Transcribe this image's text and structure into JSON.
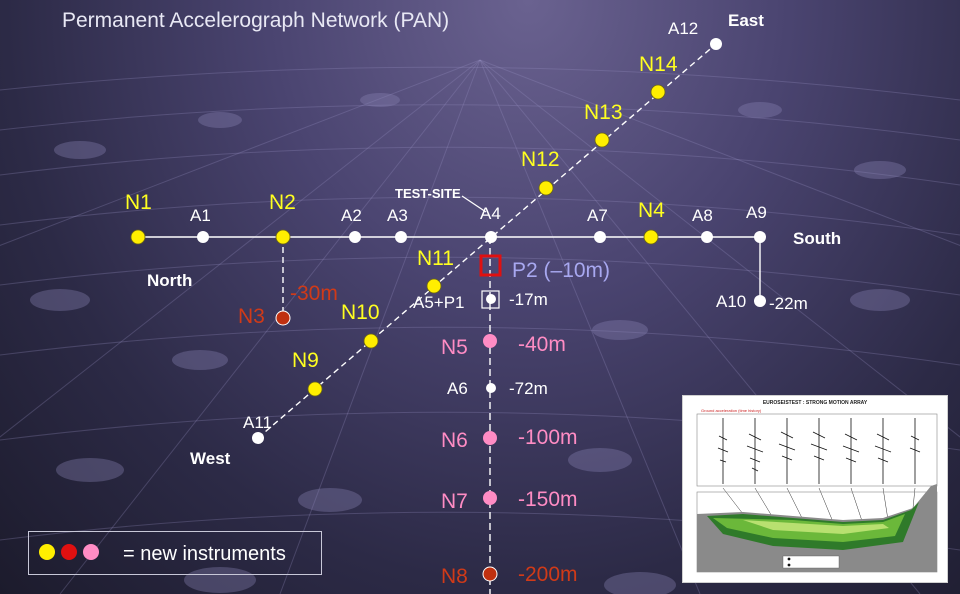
{
  "title": "Permanent Accelerograph Network (PAN)",
  "directions": {
    "north": "North",
    "south": "South",
    "east": "East",
    "west": "West"
  },
  "test_site": "TEST-SITE",
  "stations": {
    "A1": "A1",
    "A2": "A2",
    "A3": "A3",
    "A4": "A4",
    "A7": "A7",
    "A8": "A8",
    "A9": "A9",
    "A10": "A10",
    "A11": "A11",
    "A12": "A12",
    "A5P1": "A5+P1",
    "A6": "A6",
    "N1": "N1",
    "N2": "N2",
    "N3": "N3",
    "N4": "N4",
    "N5": "N5",
    "N6": "N6",
    "N7": "N7",
    "N8": "N8",
    "N9": "N9",
    "N10": "N10",
    "N11": "N11",
    "N12": "N12",
    "N13": "N13",
    "N14": "N14",
    "P2": "P2 (–10m)"
  },
  "depths": {
    "n3": "-30m",
    "a5p1": "-17m",
    "a10": "-22m",
    "n5": "-40m",
    "a6": "-72m",
    "n6": "-100m",
    "n7": "-150m",
    "n8": "-200m"
  },
  "legend": {
    "text": "= new instruments",
    "colors": [
      "#ffee00",
      "#e01010",
      "#ff8cc4"
    ]
  },
  "colors": {
    "yellow": "#ffee00",
    "white": "#ffffff",
    "pink": "#ff8cc4",
    "red": "#c03010",
    "highlight": "#e01010"
  },
  "inset": {
    "title": "EUROSEISTEST : STRONG MOTION ARRAY",
    "subtitle": "Ground acceleration (time history)"
  }
}
